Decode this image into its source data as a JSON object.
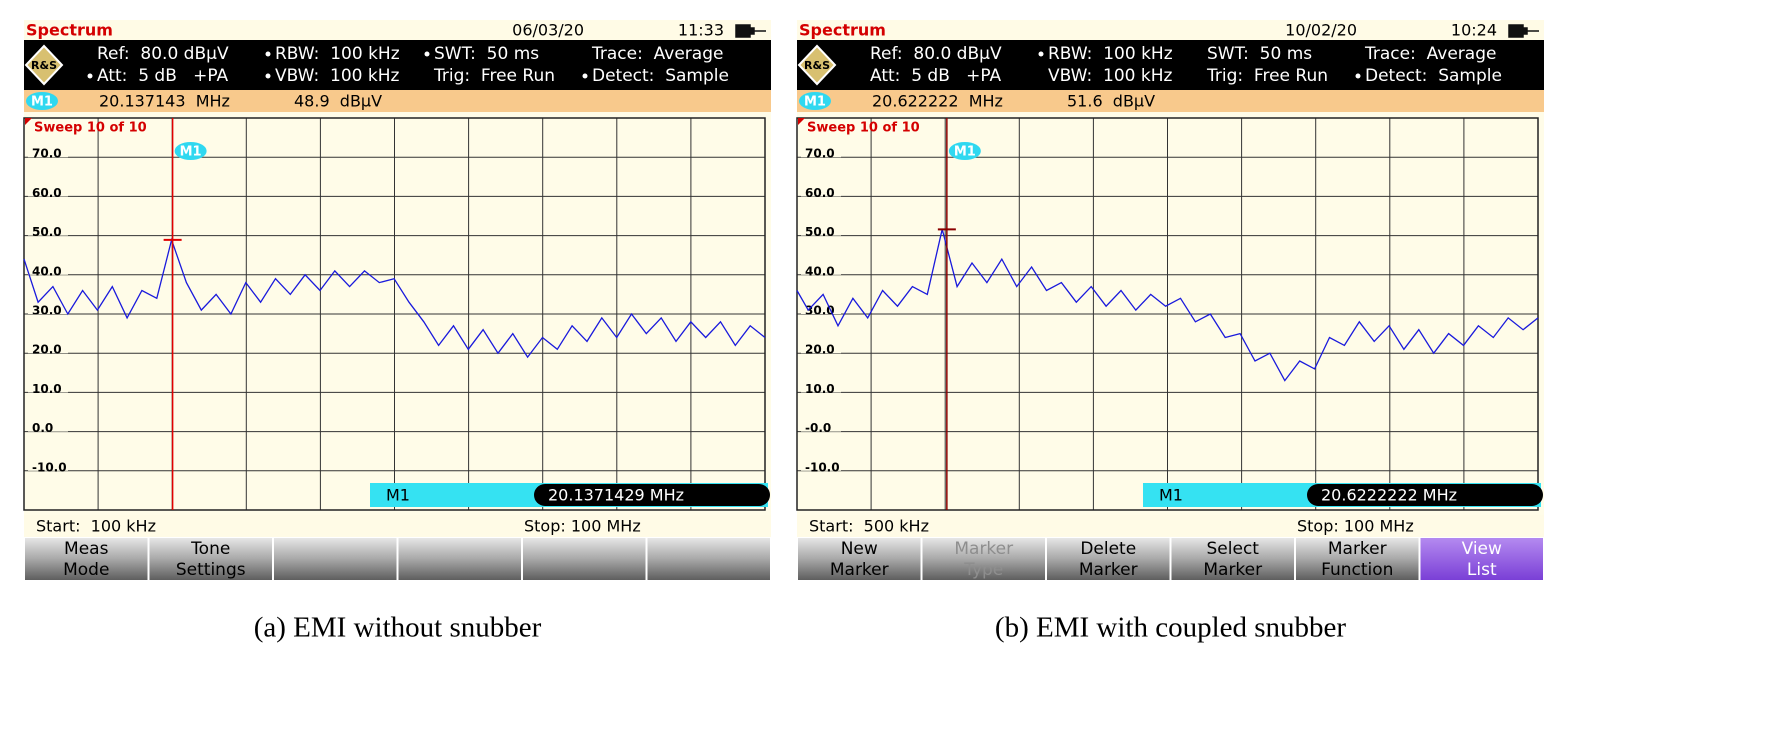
{
  "chart_data": [
    {
      "type": "line",
      "header": "Spectrum",
      "date": "06/03/20",
      "time": "11:33",
      "info": [
        [
          {
            "text": "Ref:  80.0 dBμV",
            "dot": false
          },
          {
            "text": "RBW:  100 kHz",
            "dot": true
          },
          {
            "text": "SWT:  50 ms",
            "dot": true
          },
          {
            "text": "Trace:  Average",
            "dot": false
          }
        ],
        [
          {
            "text": "Att:  5 dB   +PA",
            "dot": true
          },
          {
            "text": "VBW:  100 kHz",
            "dot": true
          },
          {
            "text": "Trig:  Free Run",
            "dot": false
          },
          {
            "text": "Detect:  Sample",
            "dot": true
          }
        ]
      ],
      "marker": {
        "name": "M1",
        "x": 20.1371429,
        "y": 48.9,
        "freq_label": "20.137143  MHz",
        "level_label": "48.9  dBμV",
        "readout": "20.1371429 MHz",
        "color": "#e00000"
      },
      "sweep": "Sweep 10 of 10",
      "start": "Start:  100 kHz",
      "stop": "Stop: 100 MHz",
      "softkey_count": 6,
      "softkeys": [
        {
          "lines": [
            "Meas",
            "Mode"
          ]
        },
        {
          "lines": [
            "Tone",
            "Settings"
          ]
        }
      ],
      "caption": "(a) EMI without snubber",
      "x": [
        0.1,
        2,
        4,
        6,
        8,
        10,
        12,
        14,
        16,
        18,
        20,
        22,
        24,
        26,
        28,
        30,
        32,
        34,
        36,
        38,
        40,
        42,
        44,
        46,
        48,
        50,
        52,
        54,
        56,
        58,
        60,
        62,
        64,
        66,
        68,
        70,
        72,
        74,
        76,
        78,
        80,
        82,
        84,
        86,
        88,
        90,
        92,
        94,
        96,
        98,
        100
      ],
      "series": [
        {
          "color": "#1a1adc",
          "values": [
            44,
            33,
            37,
            30,
            36,
            31,
            37,
            29,
            36,
            34,
            48.9,
            38,
            31,
            35,
            30,
            38,
            33,
            39,
            35,
            40,
            36,
            41,
            37,
            41,
            38,
            39,
            33,
            28,
            22,
            27,
            21,
            26,
            20,
            25,
            19,
            24,
            21,
            27,
            23,
            29,
            24,
            30,
            25,
            29,
            23,
            28,
            24,
            28,
            22,
            27,
            24
          ]
        }
      ],
      "xlim": [
        0.1,
        100
      ],
      "ylim": [
        -20,
        80
      ],
      "x_divisions": 10,
      "grid": true,
      "yticks": [
        {
          "value": 70,
          "label": "70.0"
        },
        {
          "value": 60,
          "label": "60.0"
        },
        {
          "value": 50,
          "label": "50.0"
        },
        {
          "value": 40,
          "label": "40.0"
        },
        {
          "value": 30,
          "label": "30.0"
        },
        {
          "value": 20,
          "label": "20.0"
        },
        {
          "value": 10,
          "label": "10.0"
        },
        {
          "value": 0,
          "label": "0.0"
        },
        {
          "value": -10,
          "label": "-10.0"
        }
      ]
    },
    {
      "type": "line",
      "header": "Spectrum",
      "date": "10/02/20",
      "time": "10:24",
      "info": [
        [
          {
            "text": "Ref:  80.0 dBμV",
            "dot": false
          },
          {
            "text": "RBW:  100 kHz",
            "dot": true
          },
          {
            "text": "SWT:  50 ms",
            "dot": false
          },
          {
            "text": "Trace:  Average",
            "dot": false
          }
        ],
        [
          {
            "text": "Att:  5 dB   +PA",
            "dot": false
          },
          {
            "text": "VBW:  100 kHz",
            "dot": false
          },
          {
            "text": "Trig:  Free Run",
            "dot": false
          },
          {
            "text": "Detect:  Sample",
            "dot": true
          }
        ]
      ],
      "marker": {
        "name": "M1",
        "x": 20.6222222,
        "y": 51.6,
        "freq_label": "20.622222  MHz",
        "level_label": "51.6  dBμV",
        "readout": "20.6222222 MHz",
        "color": "#8b0000"
      },
      "sweep": "Sweep 10 of 10",
      "start": "Start:  500 kHz",
      "stop": "Stop: 100 MHz",
      "softkey_count": 6,
      "softkeys": [
        {
          "lines": [
            "New",
            "Marker"
          ]
        },
        {
          "lines": [
            "Marker",
            "Type"
          ],
          "state": "disabled"
        },
        {
          "lines": [
            "Delete",
            "Marker"
          ]
        },
        {
          "lines": [
            "Select",
            "Marker"
          ]
        },
        {
          "lines": [
            "Marker",
            "Function"
          ]
        },
        {
          "lines": [
            "View",
            "List"
          ],
          "state": "active"
        }
      ],
      "caption": "(b) EMI with coupled snubber",
      "x": [
        0.5,
        2,
        4,
        6,
        8,
        10,
        12,
        14,
        16,
        18,
        20,
        22,
        24,
        26,
        28,
        30,
        32,
        34,
        36,
        38,
        40,
        42,
        44,
        46,
        48,
        50,
        52,
        54,
        56,
        58,
        60,
        62,
        64,
        66,
        68,
        70,
        72,
        74,
        76,
        78,
        80,
        82,
        84,
        86,
        88,
        90,
        92,
        94,
        96,
        98,
        100
      ],
      "series": [
        {
          "color": "#1a1adc",
          "values": [
            36,
            31,
            35,
            27,
            34,
            29,
            36,
            32,
            37,
            35,
            51.6,
            37,
            43,
            38,
            44,
            37,
            42,
            36,
            38,
            33,
            37,
            32,
            36,
            31,
            35,
            32,
            34,
            28,
            30,
            24,
            25,
            18,
            20,
            13,
            18,
            16,
            24,
            22,
            28,
            23,
            27,
            21,
            26,
            20,
            25,
            22,
            27,
            24,
            29,
            26,
            29
          ]
        }
      ],
      "xlim": [
        0.5,
        100
      ],
      "ylim": [
        -20,
        80
      ],
      "x_divisions": 10,
      "grid": true,
      "yticks": [
        {
          "value": 70,
          "label": "70.0"
        },
        {
          "value": 60,
          "label": "60.0"
        },
        {
          "value": 50,
          "label": "50.0"
        },
        {
          "value": 40,
          "label": "40.0"
        },
        {
          "value": 30,
          "label": "30.0"
        },
        {
          "value": 20,
          "label": "20.0"
        },
        {
          "value": 10,
          "label": "10.0"
        },
        {
          "value": 0,
          "label": "-0.0"
        },
        {
          "value": -10,
          "label": "-10.0"
        }
      ]
    }
  ]
}
